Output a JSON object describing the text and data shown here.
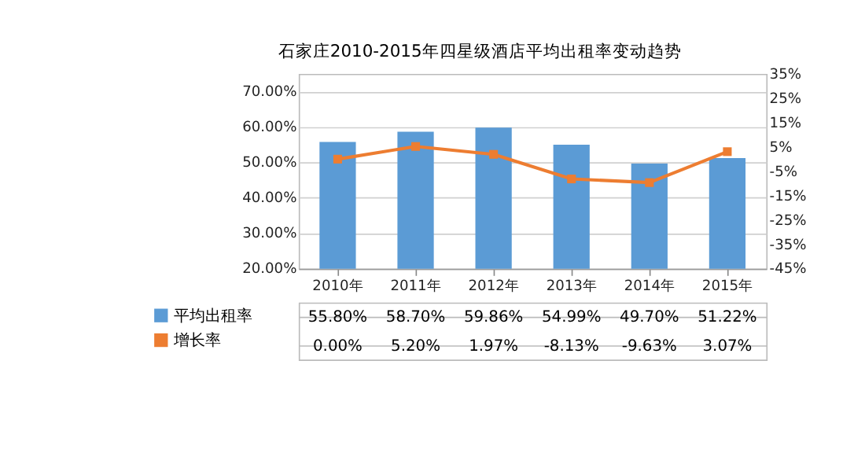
{
  "chart_data": {
    "type": "bar",
    "title": "石家庄2010-2015年四星级酒店平均出租率变动趋势",
    "categories": [
      "2010年",
      "2011年",
      "2012年",
      "2013年",
      "2014年",
      "2015年"
    ],
    "series": [
      {
        "name": "平均出租率",
        "color": "#5b9bd5",
        "values": [
          55.8,
          58.7,
          59.86,
          54.99,
          49.7,
          51.22
        ],
        "value_labels": [
          "55.80%",
          "58.70%",
          "59.86%",
          "54.99%",
          "49.70%",
          "51.22%"
        ]
      },
      {
        "name": "增长率",
        "type": "line",
        "axis": "y2",
        "color": "#ed7d31",
        "marker": "square",
        "values": [
          0.0,
          5.2,
          1.97,
          -8.13,
          -9.63,
          3.07
        ],
        "value_labels": [
          "0.00%",
          "5.20%",
          "1.97%",
          "-8.13%",
          "-9.63%",
          "3.07%"
        ]
      }
    ],
    "ylim": [
      20,
      75
    ],
    "yticks": [
      {
        "value": 20,
        "label": "20.00%"
      },
      {
        "value": 30,
        "label": "30.00%"
      },
      {
        "value": 40,
        "label": "40.00%"
      },
      {
        "value": 50,
        "label": "50.00%"
      },
      {
        "value": 60,
        "label": "60.00%"
      },
      {
        "value": 70,
        "label": "70.00%"
      }
    ],
    "y2lim": [
      -45,
      35
    ],
    "y2ticks": [
      {
        "value": -45,
        "label": "-45%"
      },
      {
        "value": -35,
        "label": "-35%"
      },
      {
        "value": -25,
        "label": "-25%"
      },
      {
        "value": -15,
        "label": "-15%"
      },
      {
        "value": -5,
        "label": "-5%"
      },
      {
        "value": 5,
        "label": "5%"
      },
      {
        "value": 15,
        "label": "15%"
      },
      {
        "value": 25,
        "label": "25%"
      },
      {
        "value": 35,
        "label": "35%"
      }
    ],
    "grid": "y",
    "legend": "bottom"
  }
}
